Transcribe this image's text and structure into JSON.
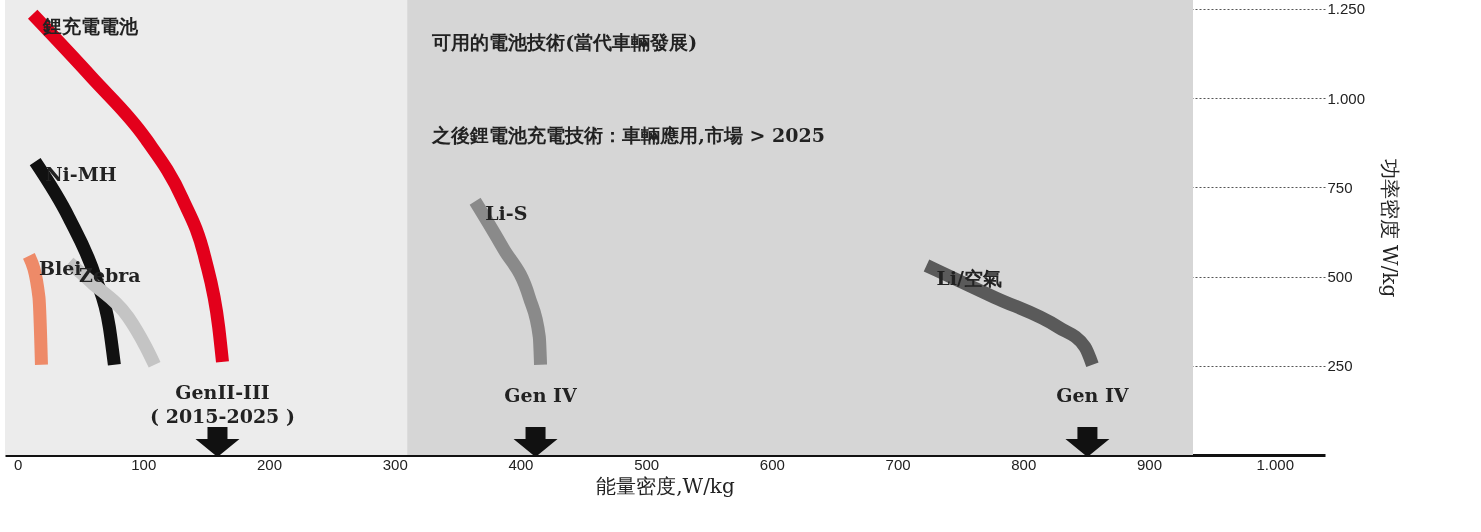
{
  "chart_data": {
    "type": "line",
    "xlabel": "能量密度,W/kg",
    "ylabel": "功率密度 W/kg",
    "xlim": [
      -10,
      1040
    ],
    "ylim": [
      0,
      1275
    ],
    "xticks": [
      0,
      100,
      200,
      300,
      400,
      500,
      600,
      700,
      800,
      900,
      {
        "value": 1000,
        "label": "1.000"
      }
    ],
    "yticks": [
      250,
      500,
      750,
      {
        "value": 1000,
        "label": "1.000"
      },
      {
        "value": 1250,
        "label": "1.250"
      }
    ],
    "grid": "y",
    "marker": "none",
    "line_style": "solid",
    "series": [
      {
        "name": "鋰充電電池",
        "color": "#e3001b",
        "x": [
          12,
          59,
          102,
          131,
          149,
          160,
          163
        ],
        "values": [
          1235,
          1058,
          886,
          719,
          553,
          358,
          261
        ]
      },
      {
        "name": "Ni-MH",
        "color": "#111111",
        "x": [
          14,
          41,
          62,
          73,
          77
        ],
        "values": [
          822,
          664,
          497,
          358,
          253
        ]
      },
      {
        "name": "Zebra",
        "color": "#c4c4c4",
        "x": [
          41,
          59,
          88,
          102,
          109
        ],
        "values": [
          539,
          483,
          386,
          303,
          253
        ]
      },
      {
        "name": "Blei",
        "color": "#ee8a68",
        "x": [
          9,
          17,
          19
        ],
        "values": [
          558,
          442,
          253
        ]
      },
      {
        "name": "Li-S",
        "color": "#8a8a8a",
        "x": [
          364,
          386,
          407,
          415,
          416
        ],
        "values": [
          711,
          581,
          442,
          331,
          253
        ]
      },
      {
        "name": "Li/空氣",
        "color": "#5a5a5a",
        "x": [
          723,
          777,
          828,
          849,
          855
        ],
        "values": [
          531,
          442,
          358,
          303,
          253
        ]
      }
    ],
    "bands": [
      {
        "axis": "x",
        "from": -10,
        "to": 935,
        "label": "可用的電池技術(當代車輛發展)",
        "color": "#ececec"
      },
      {
        "axis": "x",
        "from": 310,
        "to": 935,
        "label": "之後鋰電池充電技術：車輛應用,市場 > 2025",
        "color": "#d6d6d6"
      }
    ],
    "annotations": [
      {
        "text": "GenII-III\n( 2015-2025 )",
        "x": 163,
        "y": 261
      },
      {
        "text": "Gen IV",
        "x": 416,
        "y": 253
      },
      {
        "text": "Gen IV",
        "x": 855,
        "y": 253
      }
    ]
  }
}
